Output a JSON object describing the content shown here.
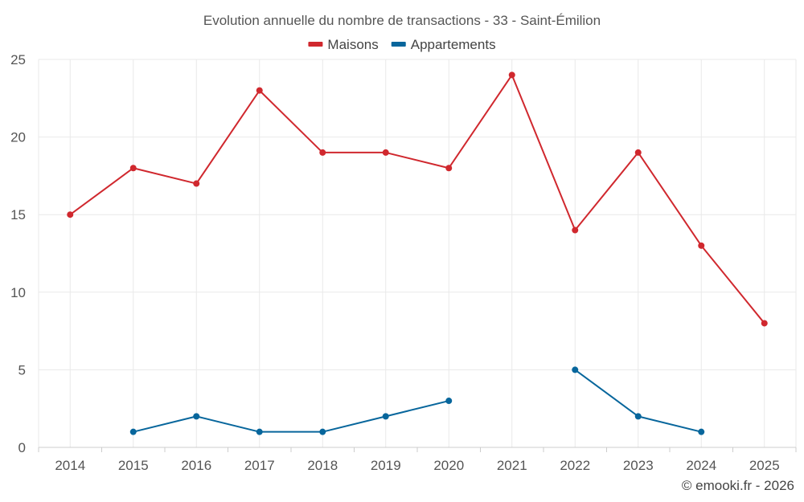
{
  "chart_data": {
    "type": "line",
    "title": "Evolution annuelle du nombre de transactions - 33 - Saint-Émilion",
    "categories": [
      "2014",
      "2015",
      "2016",
      "2017",
      "2018",
      "2019",
      "2020",
      "2021",
      "2022",
      "2023",
      "2024",
      "2025"
    ],
    "series": [
      {
        "name": "Maisons",
        "color": "#d0282e",
        "values": [
          15,
          18,
          17,
          23,
          19,
          19,
          18,
          24,
          14,
          19,
          13,
          8
        ]
      },
      {
        "name": "Appartements",
        "color": "#07669c",
        "values": [
          null,
          1,
          2,
          1,
          1,
          2,
          3,
          null,
          5,
          2,
          1,
          null
        ]
      }
    ],
    "ylim": [
      0,
      25
    ],
    "yticks": [
      0,
      5,
      10,
      15,
      20,
      25
    ],
    "xlabel": "",
    "ylabel": "",
    "grid": true,
    "legend": "top-center"
  },
  "credit": "© emooki.fr - 2026"
}
